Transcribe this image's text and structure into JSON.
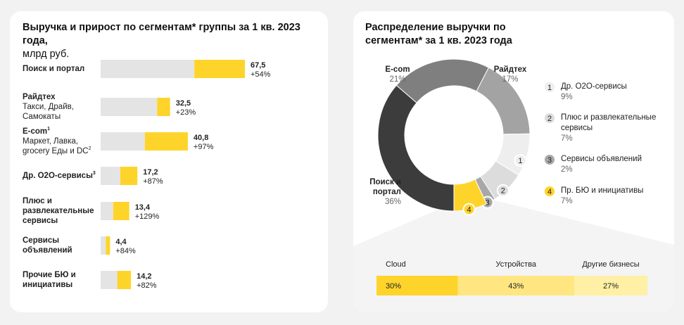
{
  "chart_data": [
    {
      "type": "growth_hbar",
      "title": "Выручка и прирост по сегментам* группы за 1 кв. 2023 года,",
      "subtitle": "млрд руб.",
      "categories": [
        {
          "name": "Поиск и портал"
        },
        {
          "name": "Райдтех",
          "detail": "Такси, Драйв, Самокаты"
        },
        {
          "name": "E-com",
          "name_note": "1",
          "detail": "Маркет, Лавка, grocery Еды и DC",
          "detail_note": "2"
        },
        {
          "name": "Др. O2O-сервисы",
          "name_note": "3"
        },
        {
          "name": "Плюс и развлекательные сервисы"
        },
        {
          "name": "Сервисы объявлений"
        },
        {
          "name": "Прочие БЮ и инициативы"
        }
      ],
      "values": [
        67.5,
        32.5,
        40.8,
        17.2,
        13.4,
        4.4,
        14.2
      ],
      "value_labels": [
        "67,5",
        "32,5",
        "40,8",
        "17,2",
        "13,4",
        "4,4",
        "14,2"
      ],
      "growth": [
        54,
        23,
        97,
        87,
        129,
        84,
        82
      ],
      "growth_labels": [
        "+54%",
        "+23%",
        "+97%",
        "+87%",
        "+129%",
        "+84%",
        "+82%"
      ],
      "color": "#fed42b",
      "base_color": "#e4e4e4"
    },
    {
      "type": "donut",
      "title": "Распределение выручки по сегментам* за 1 кв. 2023 года",
      "categories": [
        "Поиск и портал",
        "E-com",
        "Райдтех",
        "Др. O2O-сервисы",
        "Плюс и развлекательные сервисы",
        "Сервисы объявлений",
        "Пр. БЮ и инициативы"
      ],
      "badges": [
        null,
        null,
        null,
        "1",
        "2",
        "3",
        "4"
      ],
      "values": [
        36,
        21,
        17,
        9,
        7,
        2,
        7
      ],
      "value_labels": [
        "36%",
        "21%",
        "17%",
        "9%",
        "7%",
        "2%",
        "7%"
      ],
      "colors": [
        "#3c3c3c",
        "#7f7f7f",
        "#a3a3a3",
        "#eeeeee",
        "#dcdcdc",
        "#a8a8a8",
        "#fed42b"
      ]
    },
    {
      "type": "stacked_hbar",
      "categories": [
        "Cloud",
        "Устройства",
        "Другие бизнесы"
      ],
      "values": [
        30,
        43,
        27
      ],
      "value_labels": [
        "30%",
        "43%",
        "27%"
      ],
      "colors": [
        "#fed42b",
        "#ffe680",
        "#fff0a6"
      ]
    }
  ]
}
